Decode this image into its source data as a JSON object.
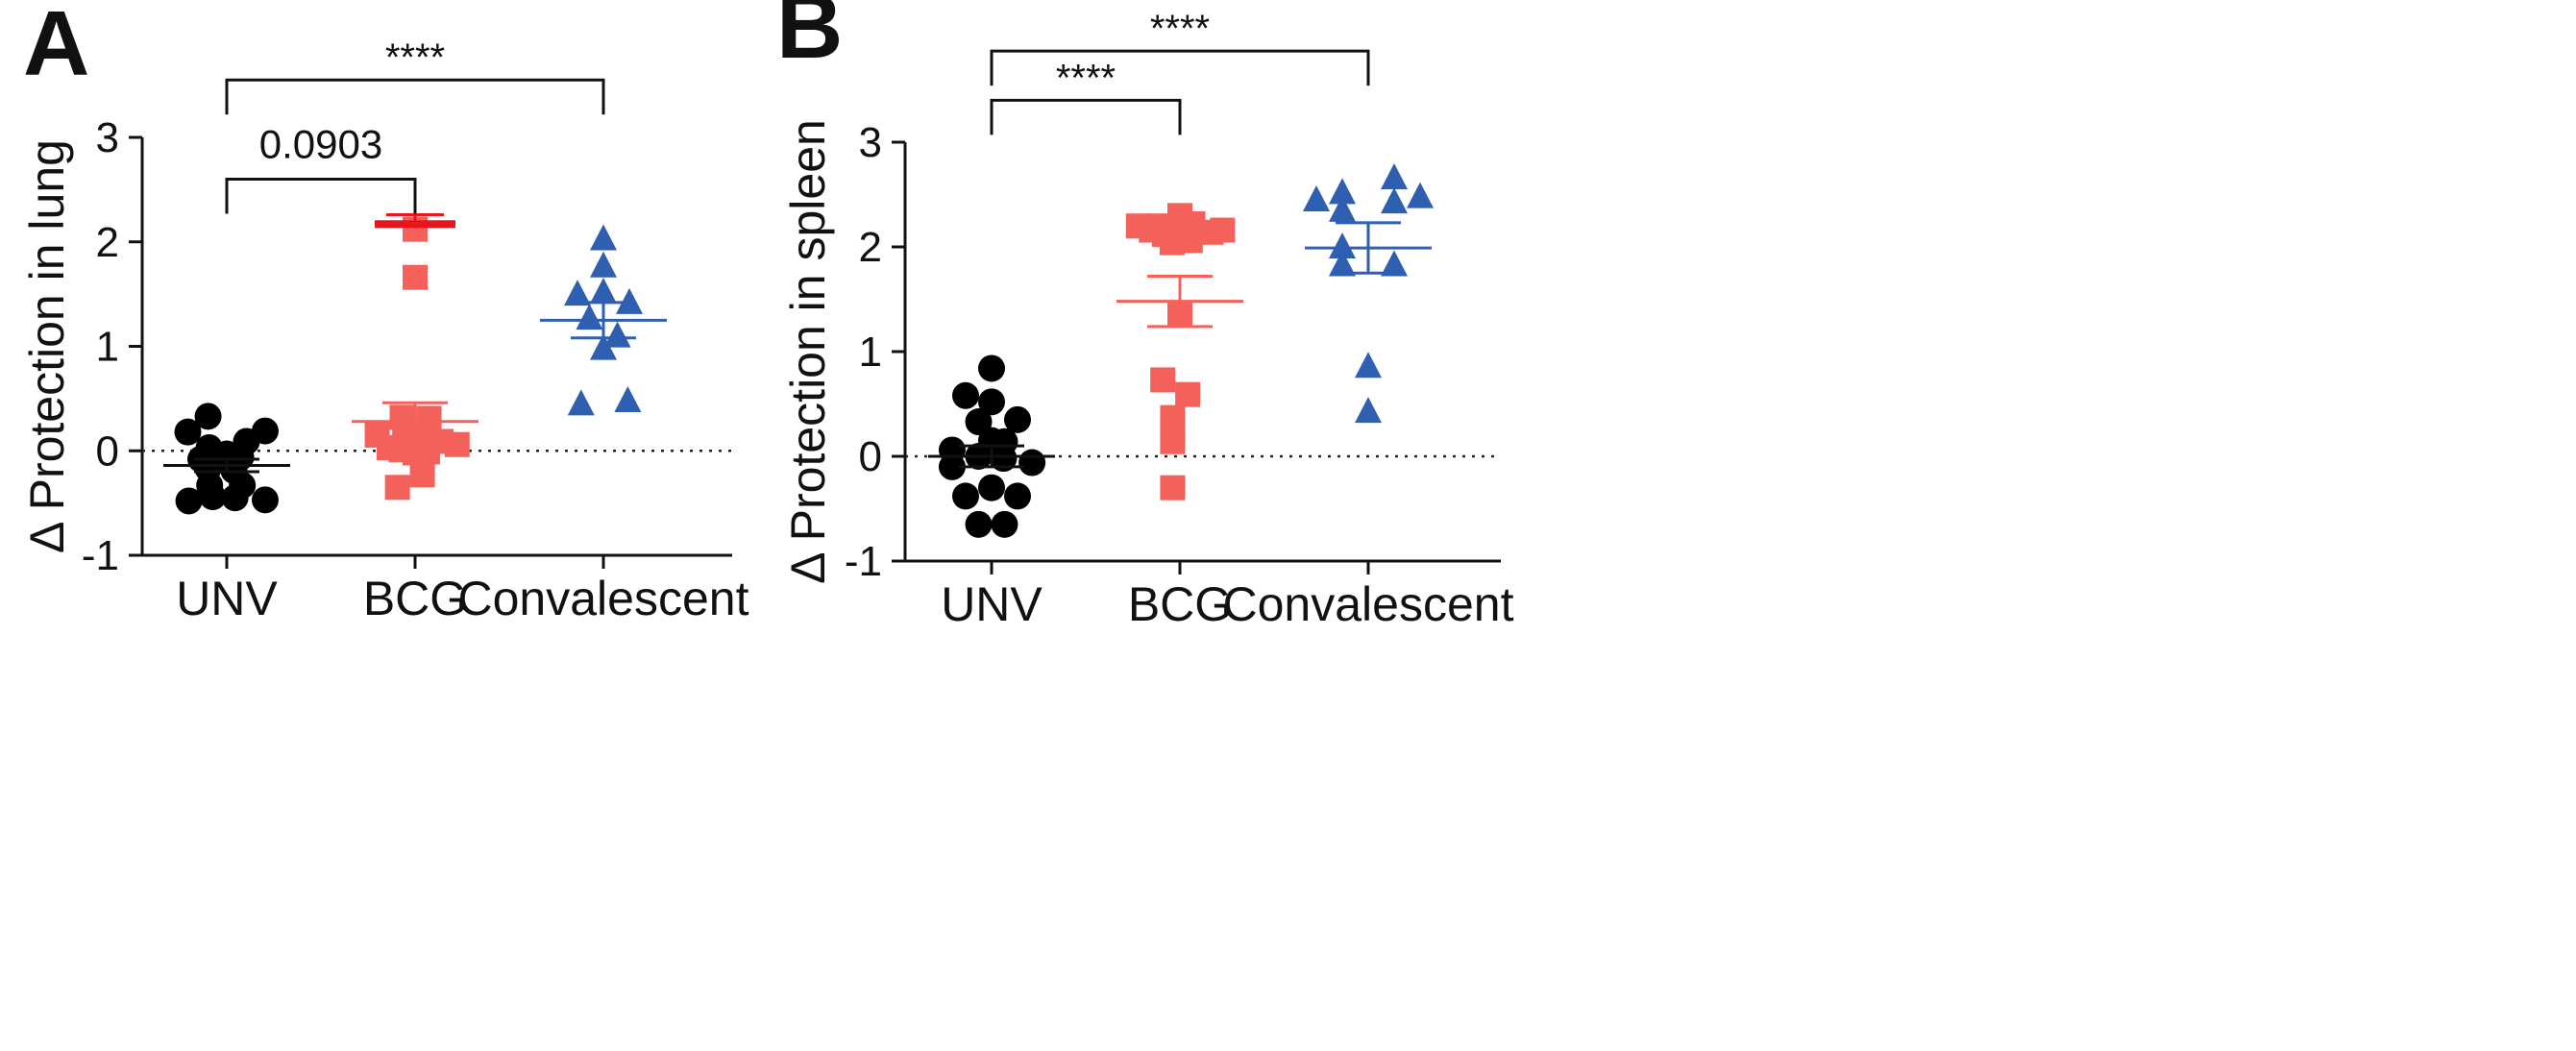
{
  "chart_data": [
    {
      "type": "scatter",
      "panel_letter": "A",
      "ylabel": "Δ Protection in lung",
      "ylim": [
        -1,
        3
      ],
      "yticks": [
        -1,
        0,
        1,
        2,
        3
      ],
      "ytick_labels": [
        "-1",
        "0",
        "1",
        "2",
        "3"
      ],
      "reference_line": 0,
      "categories": [
        "UNV",
        "BCG",
        "Convalescent"
      ],
      "series": [
        {
          "name": "UNV",
          "marker": "circle",
          "color": "#000000",
          "mean": -0.14,
          "sem": 0.06,
          "points": [
            {
              "offset": -0.75,
              "y": 0.18
            },
            {
              "offset": -0.36,
              "y": 0.33
            },
            {
              "offset": 0.38,
              "y": 0.09
            },
            {
              "offset": 0.74,
              "y": 0.19
            },
            {
              "offset": -0.34,
              "y": 0.03
            },
            {
              "offset": 0.0,
              "y": -0.03
            },
            {
              "offset": -0.5,
              "y": -0.08
            },
            {
              "offset": 0.27,
              "y": -0.06
            },
            {
              "offset": -0.36,
              "y": -0.17
            },
            {
              "offset": 0.14,
              "y": -0.19
            },
            {
              "offset": -0.33,
              "y": -0.33
            },
            {
              "offset": 0.3,
              "y": -0.33
            },
            {
              "offset": -0.73,
              "y": -0.48
            },
            {
              "offset": -0.27,
              "y": -0.44
            },
            {
              "offset": 0.16,
              "y": -0.45
            },
            {
              "offset": 0.74,
              "y": -0.47
            }
          ]
        },
        {
          "name": "BCG",
          "marker": "square",
          "color": "#f4605a",
          "mean": 0.28,
          "sem": 0.18,
          "highlight_line": 2.17,
          "highlight_color": "#e8151c",
          "highlight_sem": 0.09,
          "points": [
            {
              "offset": 0.0,
              "y": 2.12
            },
            {
              "offset": 0.0,
              "y": 1.66
            },
            {
              "offset": -0.25,
              "y": 0.32
            },
            {
              "offset": 0.27,
              "y": 0.31
            },
            {
              "offset": -0.73,
              "y": 0.15
            },
            {
              "offset": -0.2,
              "y": 0.18
            },
            {
              "offset": 0.15,
              "y": 0.11
            },
            {
              "offset": 0.5,
              "y": 0.09
            },
            {
              "offset": -0.5,
              "y": 0.03
            },
            {
              "offset": 0.81,
              "y": 0.06
            },
            {
              "offset": -0.27,
              "y": 0.01
            },
            {
              "offset": 0.0,
              "y": -0.02
            },
            {
              "offset": 0.24,
              "y": -0.01
            },
            {
              "offset": 0.14,
              "y": -0.23
            },
            {
              "offset": -0.34,
              "y": -0.35
            }
          ]
        },
        {
          "name": "Convalescent",
          "marker": "triangle",
          "color": "#2e5fb0",
          "mean": 1.25,
          "sem": 0.17,
          "points": [
            {
              "offset": 0.0,
              "y": 2.03
            },
            {
              "offset": 0.0,
              "y": 1.77
            },
            {
              "offset": -0.5,
              "y": 1.5
            },
            {
              "offset": 0.0,
              "y": 1.52
            },
            {
              "offset": 0.5,
              "y": 1.42
            },
            {
              "offset": -0.27,
              "y": 1.27
            },
            {
              "offset": 0.27,
              "y": 1.1
            },
            {
              "offset": 0.0,
              "y": 0.98
            },
            {
              "offset": -0.43,
              "y": 0.45
            },
            {
              "offset": 0.47,
              "y": 0.48
            }
          ]
        }
      ],
      "comparisons": [
        {
          "from": "UNV",
          "to": "BCG",
          "label": "0.0903",
          "y": 2.6
        },
        {
          "from": "UNV",
          "to": "Convalescent",
          "label": "****",
          "y": 3.55
        }
      ]
    },
    {
      "type": "scatter",
      "panel_letter": "B",
      "ylabel": "Δ Protection in spleen",
      "ylim": [
        -1,
        3
      ],
      "yticks": [
        -1,
        0,
        1,
        2,
        3
      ],
      "ytick_labels": [
        "-1",
        "0",
        "1",
        "2",
        "3"
      ],
      "reference_line": 0,
      "categories": [
        "UNV",
        "BCG",
        "Convalescent"
      ],
      "series": [
        {
          "name": "UNV",
          "marker": "circle",
          "color": "#000000",
          "mean": 0.0,
          "sem": 0.1,
          "points": [
            {
              "offset": 0.0,
              "y": 0.84
            },
            {
              "offset": -0.5,
              "y": 0.58
            },
            {
              "offset": 0.0,
              "y": 0.52
            },
            {
              "offset": 0.5,
              "y": 0.35
            },
            {
              "offset": -0.25,
              "y": 0.33
            },
            {
              "offset": 0.0,
              "y": 0.15
            },
            {
              "offset": 0.25,
              "y": 0.14
            },
            {
              "offset": -0.76,
              "y": 0.06
            },
            {
              "offset": -0.25,
              "y": 0.0
            },
            {
              "offset": 0.23,
              "y": -0.02
            },
            {
              "offset": 0.78,
              "y": -0.06
            },
            {
              "offset": -0.76,
              "y": -0.1
            },
            {
              "offset": -0.5,
              "y": -0.38
            },
            {
              "offset": 0.0,
              "y": -0.3
            },
            {
              "offset": 0.5,
              "y": -0.38
            },
            {
              "offset": -0.25,
              "y": -0.65
            },
            {
              "offset": 0.25,
              "y": -0.65
            }
          ]
        },
        {
          "name": "BCG",
          "marker": "square",
          "color": "#f4605a",
          "mean": 1.48,
          "sem": 0.24,
          "points": [
            {
              "offset": 0.0,
              "y": 2.3
            },
            {
              "offset": -0.8,
              "y": 2.2
            },
            {
              "offset": 0.15,
              "y": 2.2
            },
            {
              "offset": 0.25,
              "y": 2.22
            },
            {
              "offset": -0.55,
              "y": 2.16
            },
            {
              "offset": 0.6,
              "y": 2.14
            },
            {
              "offset": 0.82,
              "y": 2.16
            },
            {
              "offset": -0.3,
              "y": 2.12
            },
            {
              "offset": 0.2,
              "y": 2.06
            },
            {
              "offset": -0.15,
              "y": 2.04
            },
            {
              "offset": -0.4,
              "y": 2.2
            },
            {
              "offset": 0.0,
              "y": 1.36
            },
            {
              "offset": -0.33,
              "y": 0.73
            },
            {
              "offset": 0.15,
              "y": 0.59
            },
            {
              "offset": -0.14,
              "y": 0.37
            },
            {
              "offset": -0.14,
              "y": 0.14
            },
            {
              "offset": -0.14,
              "y": -0.3
            }
          ]
        },
        {
          "name": "Convalescent",
          "marker": "triangle",
          "color": "#2e5fb0",
          "mean": 1.99,
          "sem": 0.24,
          "points": [
            {
              "offset": 0.5,
              "y": 2.66
            },
            {
              "offset": -0.5,
              "y": 2.52
            },
            {
              "offset": -1.0,
              "y": 2.45
            },
            {
              "offset": 1.0,
              "y": 2.48
            },
            {
              "offset": 0.5,
              "y": 2.43
            },
            {
              "offset": -0.5,
              "y": 2.35
            },
            {
              "offset": -0.5,
              "y": 2.0
            },
            {
              "offset": -0.5,
              "y": 1.83
            },
            {
              "offset": 0.5,
              "y": 1.83
            },
            {
              "offset": 0.0,
              "y": 0.86
            },
            {
              "offset": 0.0,
              "y": 0.43
            }
          ]
        }
      ],
      "comparisons": [
        {
          "from": "UNV",
          "to": "BCG",
          "label": "****",
          "y": 3.4
        },
        {
          "from": "UNV",
          "to": "Convalescent",
          "label": "****",
          "y": 3.87
        }
      ]
    }
  ]
}
